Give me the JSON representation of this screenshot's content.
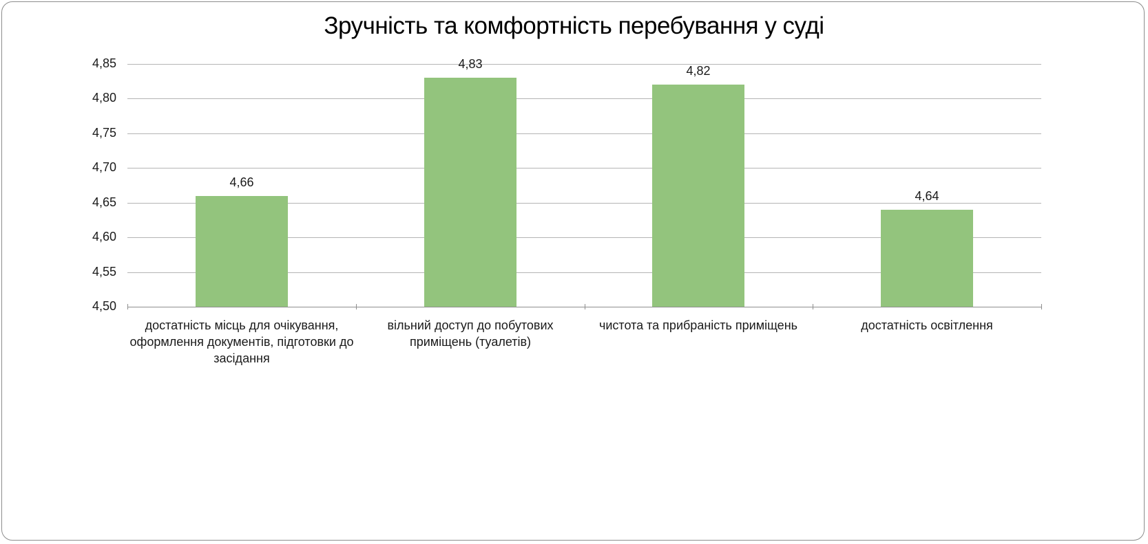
{
  "chart_data": {
    "type": "bar",
    "title": "Зручність та комфортність перебування у суді",
    "xlabel": "",
    "ylabel": "",
    "ylim": [
      4.5,
      4.85
    ],
    "yticks": [
      "4,50",
      "4,55",
      "4,60",
      "4,65",
      "4,70",
      "4,75",
      "4,80",
      "4,85"
    ],
    "grid": true,
    "legend": null,
    "bar_color": "#93c47d",
    "categories": [
      "достатність місць для очікування, оформлення документів, підготовки до засідання",
      "вільний доступ до побутових приміщень (туалетів)",
      "чистота та прибраність приміщень",
      "достатність освітлення"
    ],
    "values": [
      4.66,
      4.83,
      4.82,
      4.64
    ],
    "data_labels": [
      "4,66",
      "4,83",
      "4,82",
      "4,64"
    ]
  },
  "x_label_lines": [
    [
      "достатність місць для очікування,",
      "оформлення документів, підготовки до",
      "засідання"
    ],
    [
      "вільний доступ до побутових",
      "приміщень (туалетів)"
    ],
    [
      "чистота та прибраність приміщень"
    ],
    [
      "достатність освітлення"
    ]
  ]
}
